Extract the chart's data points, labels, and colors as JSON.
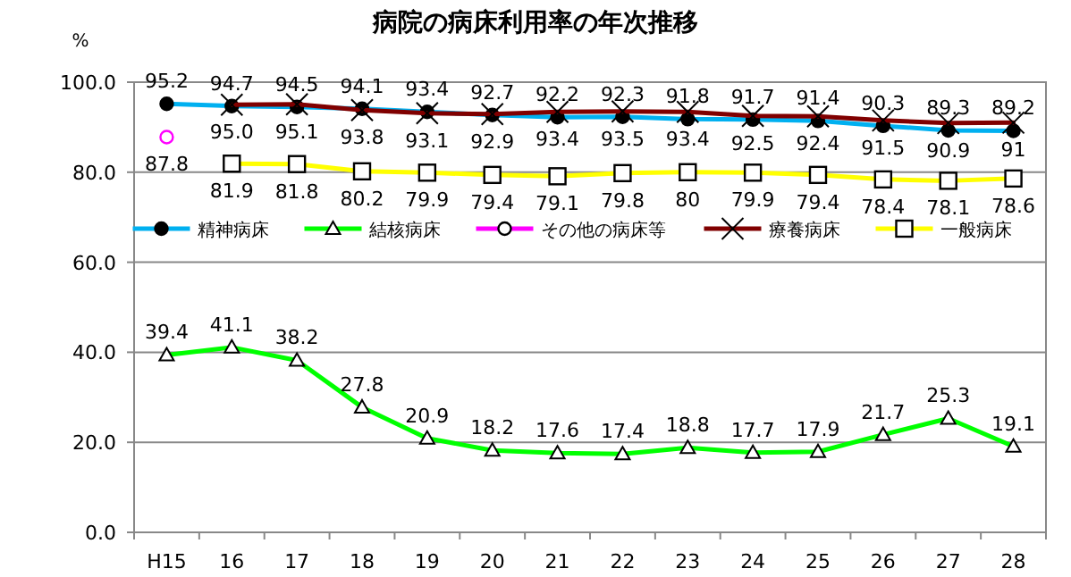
{
  "chart_data": {
    "type": "line",
    "title": "病院の病床利用率の年次推移",
    "ylabel": "%",
    "categories": [
      "H15",
      "16",
      "17",
      "18",
      "19",
      "20",
      "21",
      "22",
      "23",
      "24",
      "25",
      "26",
      "27",
      "28"
    ],
    "ylim": [
      0,
      100
    ],
    "yticks": [
      {
        "value": 0,
        "label": "0.0"
      },
      {
        "value": 20,
        "label": "20.0"
      },
      {
        "value": 40,
        "label": "40.0"
      },
      {
        "value": 60,
        "label": "60.0"
      },
      {
        "value": 80,
        "label": "80.0"
      },
      {
        "value": 100,
        "label": "100.0"
      }
    ],
    "grid": "y",
    "legend": "top",
    "line_style": "solid",
    "series": [
      {
        "name": "精神病床",
        "color": "#00b0f0",
        "marker": "circle",
        "values": [
          95.2,
          94.7,
          94.5,
          94.1,
          93.4,
          92.7,
          92.2,
          92.3,
          91.8,
          91.7,
          91.4,
          90.3,
          89.3,
          89.2
        ],
        "value_labels": [
          "95.2",
          "94.7",
          "94.5",
          "94.1",
          "93.4",
          "92.7",
          "92.2",
          "92.3",
          "91.8",
          "91.7",
          "91.4",
          "90.3",
          "89.3",
          "89.2"
        ]
      },
      {
        "name": "結核病床",
        "color": "#00ff00",
        "marker": "triangle",
        "values": [
          39.4,
          41.1,
          38.2,
          27.8,
          20.9,
          18.2,
          17.6,
          17.4,
          18.8,
          17.7,
          17.9,
          21.7,
          25.3,
          19.1
        ],
        "value_labels": [
          "39.4",
          "41.1",
          "38.2",
          "27.8",
          "20.9",
          "18.2",
          "17.6",
          "17.4",
          "18.8",
          "17.7",
          "17.9",
          "21.7",
          "25.3",
          "19.1"
        ]
      },
      {
        "name": "その他の病床等",
        "color": "#ff00ff",
        "marker": "circle",
        "values": [
          87.8,
          null,
          null,
          null,
          null,
          null,
          null,
          null,
          null,
          null,
          null,
          null,
          null,
          null
        ],
        "value_labels": [
          "87.8",
          null,
          null,
          null,
          null,
          null,
          null,
          null,
          null,
          null,
          null,
          null,
          null,
          null
        ]
      },
      {
        "name": "療養病床",
        "color": "#800000",
        "marker": "cross",
        "values": [
          null,
          95.0,
          95.1,
          93.8,
          93.1,
          92.9,
          93.4,
          93.5,
          93.4,
          92.5,
          92.4,
          91.5,
          90.9,
          91
        ],
        "value_labels": [
          null,
          "95.0",
          "95.1",
          "93.8",
          "93.1",
          "92.9",
          "93.4",
          "93.5",
          "93.4",
          "92.5",
          "92.4",
          "91.5",
          "90.9",
          "91"
        ]
      },
      {
        "name": "一般病床",
        "color": "#ffff00",
        "marker": "square",
        "values": [
          null,
          81.9,
          81.8,
          80.2,
          79.9,
          79.4,
          79.1,
          79.8,
          80,
          79.9,
          79.4,
          78.4,
          78.1,
          78.6
        ],
        "value_labels": [
          null,
          "81.9",
          "81.8",
          "80.2",
          "79.9",
          "79.4",
          "79.1",
          "79.8",
          "80",
          "79.9",
          "79.4",
          "78.4",
          "78.1",
          "78.6"
        ]
      }
    ]
  }
}
